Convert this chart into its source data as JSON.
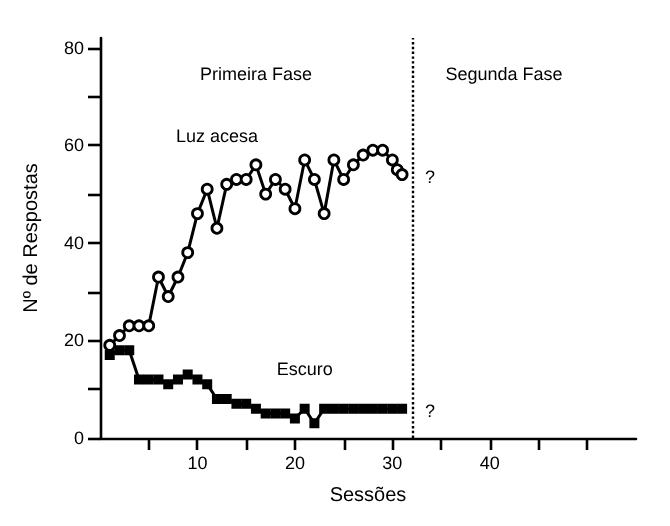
{
  "chart_data": {
    "type": "line",
    "xlabel": "Sessões",
    "ylabel": "Nº de Respostas",
    "xlim": [
      0,
      55
    ],
    "xticks": [
      {
        "value": 5,
        "label": null
      },
      10,
      {
        "value": 15,
        "label": null
      },
      20,
      {
        "value": 25,
        "label": null
      },
      30,
      {
        "value": 35,
        "label": null
      },
      40,
      {
        "value": 45,
        "label": null
      },
      {
        "value": 50,
        "label": null
      }
    ],
    "ylim": [
      0,
      82
    ],
    "yticks": [
      0,
      {
        "value": 10,
        "label": null
      },
      20,
      {
        "value": 30,
        "label": null
      },
      40,
      {
        "value": 50,
        "label": null
      },
      60,
      {
        "value": 70,
        "label": null
      },
      80
    ],
    "grid": false,
    "series": [
      {
        "name": "Luz acesa",
        "color": "#000000",
        "marker": "circle",
        "x": [
          1,
          2,
          3,
          4,
          5,
          6,
          7,
          8,
          9,
          10,
          11,
          12,
          13,
          14,
          15,
          16,
          17,
          18,
          19,
          20,
          21,
          22,
          23,
          24,
          25,
          26,
          27,
          28,
          29,
          30,
          30.5,
          31
        ],
        "values": [
          19,
          21,
          23,
          23,
          23,
          33,
          29,
          33,
          38,
          46,
          51,
          43,
          52,
          53,
          53,
          56,
          50,
          53,
          51,
          47,
          57,
          53,
          46,
          57,
          53,
          56,
          58,
          59,
          59,
          57,
          55,
          54
        ]
      },
      {
        "name": "Escuro",
        "color": "#000000",
        "marker": "square",
        "x": [
          1,
          2,
          3,
          4,
          5,
          6,
          7,
          8,
          9,
          10,
          11,
          12,
          13,
          14,
          15,
          16,
          17,
          18,
          19,
          20,
          21,
          22,
          23,
          24,
          25,
          26,
          27,
          28,
          29,
          30,
          31
        ],
        "values": [
          17,
          18,
          18,
          12,
          12,
          12,
          11,
          12,
          13,
          12,
          11,
          8,
          8,
          7,
          7,
          6,
          5,
          5,
          5,
          4,
          6,
          3,
          6,
          6,
          6,
          6,
          6,
          6,
          6,
          6,
          6
        ]
      }
    ],
    "ref_lines": [
      {
        "axis": "x",
        "value": 32,
        "line_style": "dotted",
        "color": "#000000"
      }
    ],
    "annotations": [
      "Primeira Fase",
      "Segunda Fase",
      "?",
      "?"
    ]
  }
}
